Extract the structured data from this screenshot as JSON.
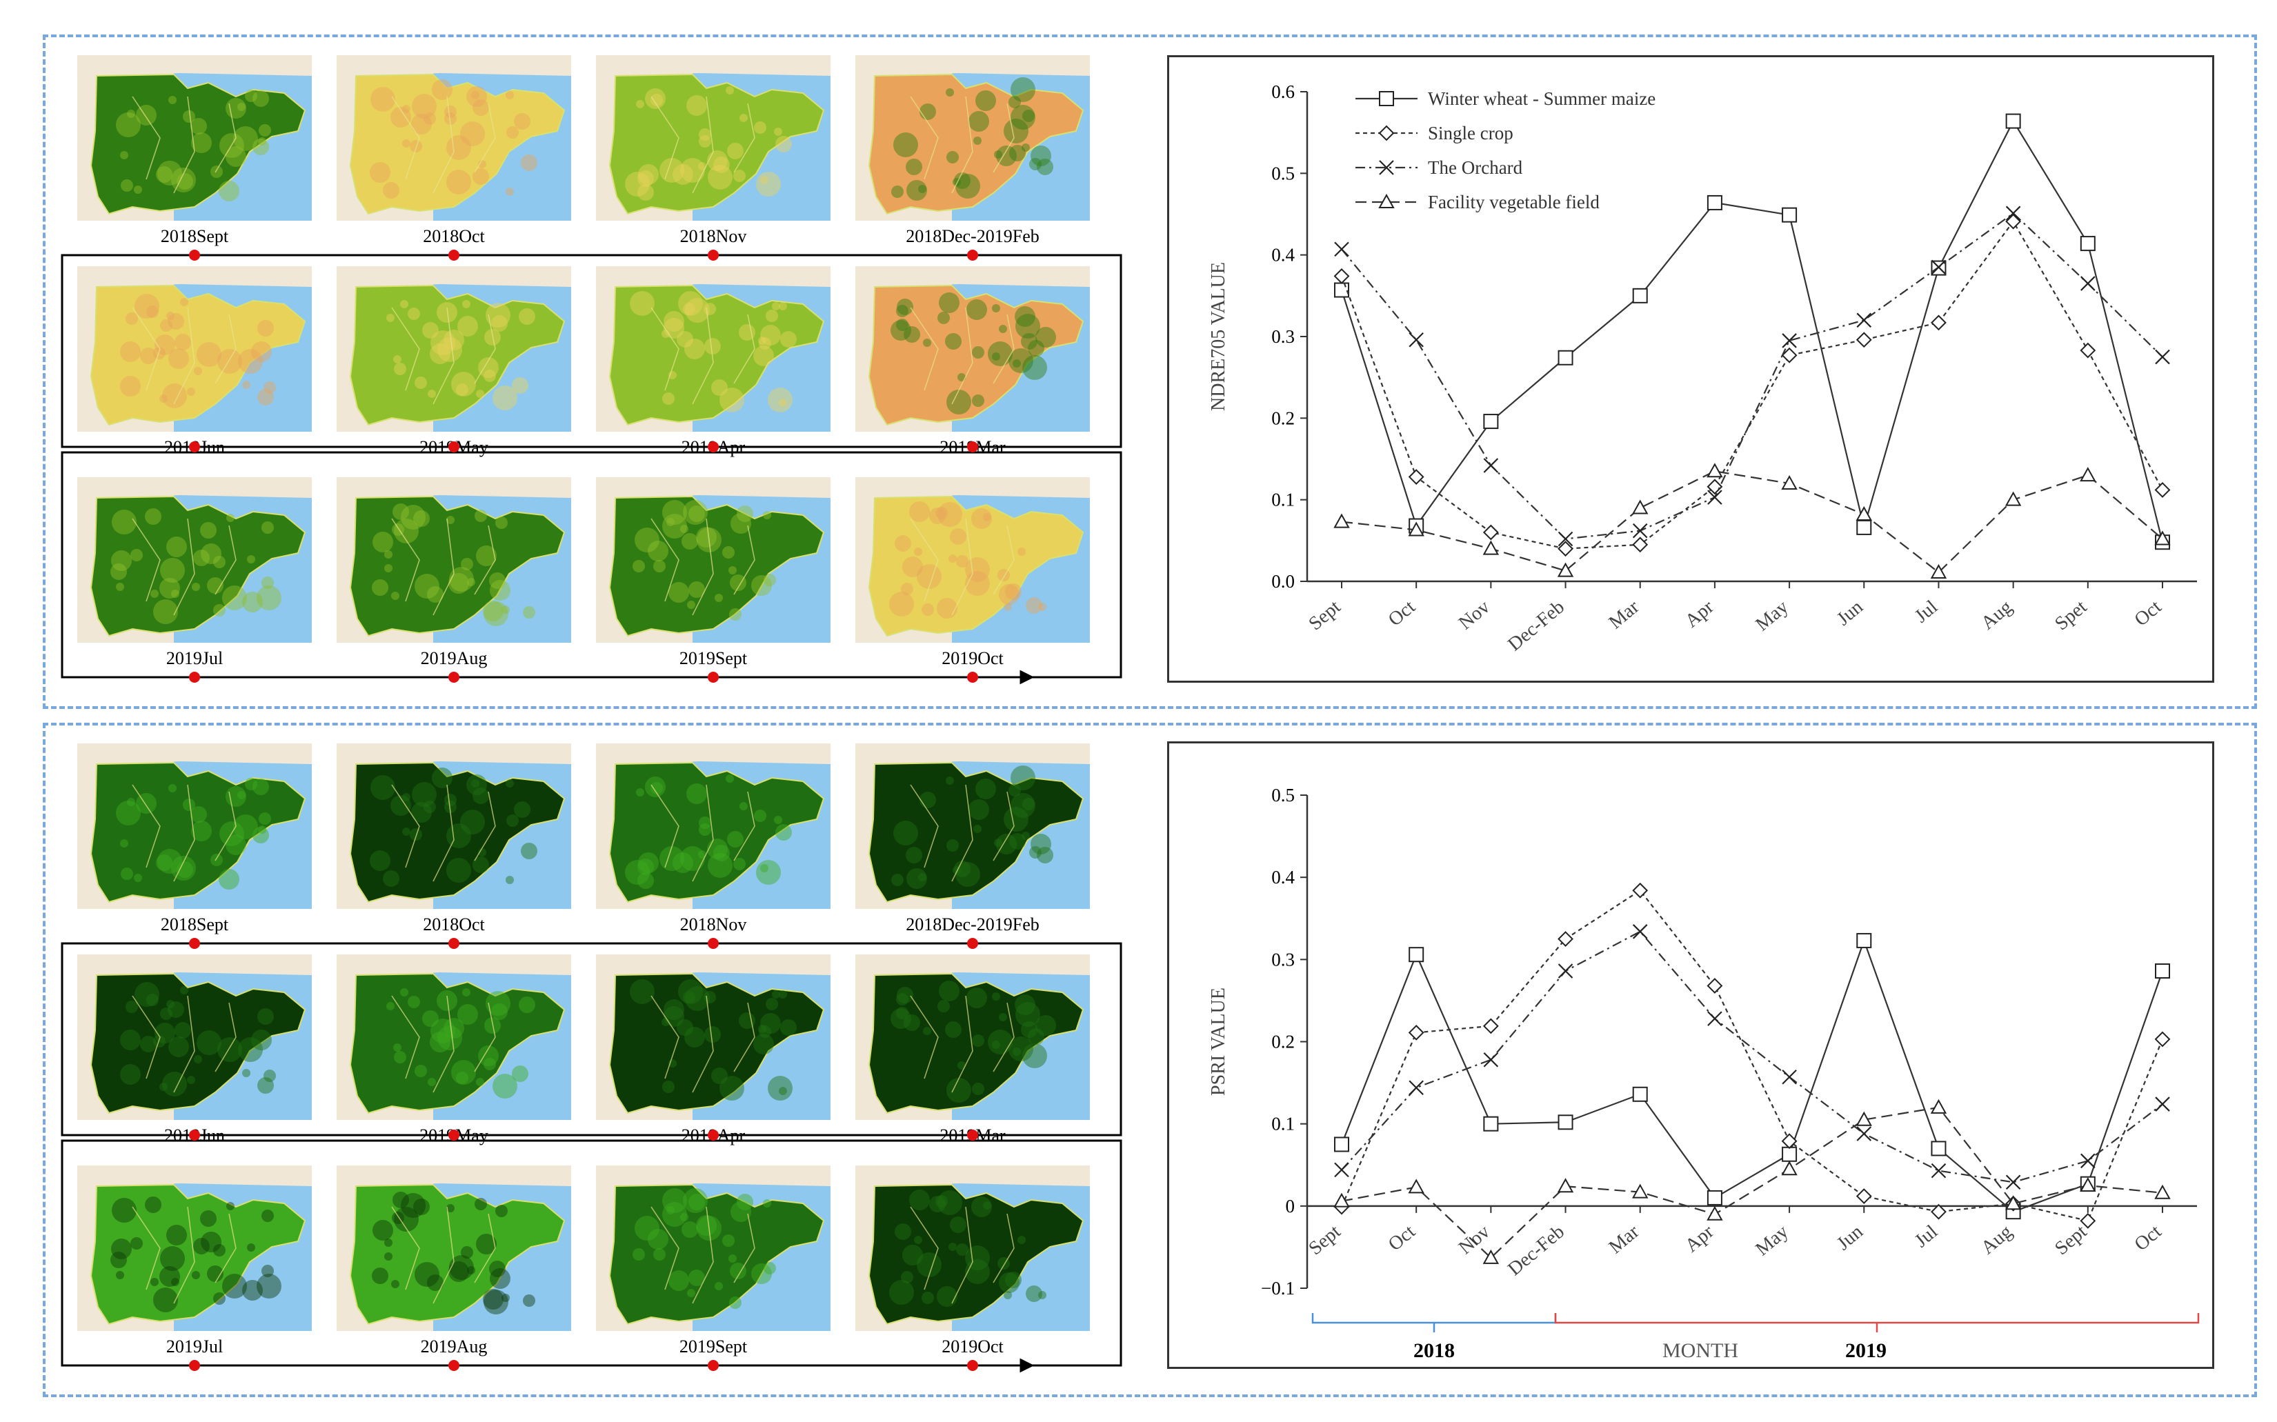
{
  "colors": {
    "panel_border": "#7aa7dc",
    "sea": "#8ec8ee",
    "land_bg": "#f1e7d6",
    "ndre_palette": [
      "#2f7d12",
      "#8fbf2d",
      "#e9d25a",
      "#e9a35a"
    ],
    "psri_palette": [
      "#0b3a06",
      "#1f6f12",
      "#3faa1f"
    ],
    "timeline_dot": "#e01010",
    "bracket_2018": "#4a8fd9",
    "bracket_2019": "#e04848"
  },
  "top_panel": {
    "rows": [
      {
        "labels": [
          "2018Sept",
          "2018Oct",
          "2018Nov",
          "2018Dec-2019Feb"
        ],
        "tones": [
          0,
          2,
          1,
          3
        ]
      },
      {
        "labels": [
          "2019Jun",
          "2019May",
          "2019Apr",
          "2019Mar"
        ],
        "tones": [
          2,
          1,
          1,
          3
        ]
      },
      {
        "labels": [
          "2019Jul",
          "2019Aug",
          "2019Sept",
          "2019Oct"
        ],
        "tones": [
          0,
          0,
          0,
          2
        ]
      }
    ]
  },
  "bottom_panel": {
    "rows": [
      {
        "labels": [
          "2018Sept",
          "2018Oct",
          "2018Nov",
          "2018Dec-2019Feb"
        ],
        "tones": [
          1,
          0,
          1,
          0
        ]
      },
      {
        "labels": [
          "2019Jun",
          "2019May",
          "2019Apr",
          "2019Mar"
        ],
        "tones": [
          0,
          1,
          0,
          0
        ]
      },
      {
        "labels": [
          "2019Jul",
          "2019Aug",
          "2019Sept",
          "2019Oct"
        ],
        "tones": [
          2,
          2,
          1,
          0
        ]
      }
    ]
  },
  "chart_data": [
    {
      "type": "line",
      "ylabel": "NDRE705  VALUE",
      "xlabel": "",
      "categories": [
        "Sept",
        "Oct",
        "Nov",
        "Dec-Feb",
        "Mar",
        "Apr",
        "May",
        "Jun",
        "Jul",
        "Aug",
        "Spet",
        "Oct"
      ],
      "ylim": [
        0,
        0.6
      ],
      "yticks": [
        "0.0",
        "0.1",
        "0.2",
        "0.3",
        "0.4",
        "0.5",
        "0.6"
      ],
      "legend_position": "top-left",
      "series": [
        {
          "name": "Winter wheat - Summer maize",
          "marker": "square",
          "dash": "solid",
          "values": [
            0.357,
            0.068,
            0.196,
            0.274,
            0.35,
            0.464,
            0.449,
            0.066,
            0.384,
            0.564,
            0.414,
            0.048
          ]
        },
        {
          "name": "Single crop",
          "marker": "diamond",
          "dash": "dot",
          "values": [
            0.374,
            0.128,
            0.06,
            0.04,
            0.045,
            0.116,
            0.277,
            0.296,
            0.317,
            0.441,
            0.283,
            0.112
          ]
        },
        {
          "name": "The Orchard",
          "marker": "x",
          "dash": "dashdot",
          "values": [
            0.407,
            0.296,
            0.142,
            0.052,
            0.062,
            0.103,
            0.295,
            0.32,
            0.385,
            0.451,
            0.365,
            0.275
          ]
        },
        {
          "name": "Facility vegetable field",
          "marker": "triangle",
          "dash": "dash",
          "values": [
            0.073,
            0.063,
            0.04,
            0.013,
            0.09,
            0.135,
            0.12,
            0.082,
            0.011,
            0.1,
            0.13,
            0.052
          ]
        }
      ]
    },
    {
      "type": "line",
      "ylabel": "PSRI VALUE",
      "xlabel": "MONTH",
      "year_labels": [
        "2018",
        "2019"
      ],
      "categories": [
        "Sept",
        "Oct",
        "Nov",
        "Dec-Feb",
        "Mar",
        "Apr",
        "May",
        "Jun",
        "Jul",
        "Aug",
        "Sept",
        "Oct"
      ],
      "ylim": [
        -0.1,
        0.5
      ],
      "yticks": [
        "−0.1",
        "0",
        "0.1",
        "0.2",
        "0.3",
        "0.4",
        "0.5"
      ],
      "series": [
        {
          "name": "Winter wheat - Summer maize",
          "marker": "square",
          "dash": "solid",
          "values": [
            0.075,
            0.306,
            0.1,
            0.102,
            0.136,
            0.01,
            0.063,
            0.323,
            0.07,
            -0.007,
            0.027,
            0.286
          ]
        },
        {
          "name": "Single crop",
          "marker": "diamond",
          "dash": "dot",
          "values": [
            -0.001,
            0.211,
            0.219,
            0.325,
            0.384,
            0.268,
            0.079,
            0.012,
            -0.007,
            0.003,
            -0.018,
            0.203
          ]
        },
        {
          "name": "The Orchard",
          "marker": "x",
          "dash": "dashdot",
          "values": [
            0.044,
            0.144,
            0.178,
            0.286,
            0.334,
            0.228,
            0.157,
            0.088,
            0.043,
            0.029,
            0.055,
            0.124
          ]
        },
        {
          "name": "Facility vegetable field",
          "marker": "triangle",
          "dash": "dash",
          "values": [
            0.006,
            0.023,
            -0.063,
            0.024,
            0.017,
            -0.01,
            0.045,
            0.105,
            0.12,
            0.003,
            0.025,
            0.016
          ]
        }
      ]
    }
  ]
}
